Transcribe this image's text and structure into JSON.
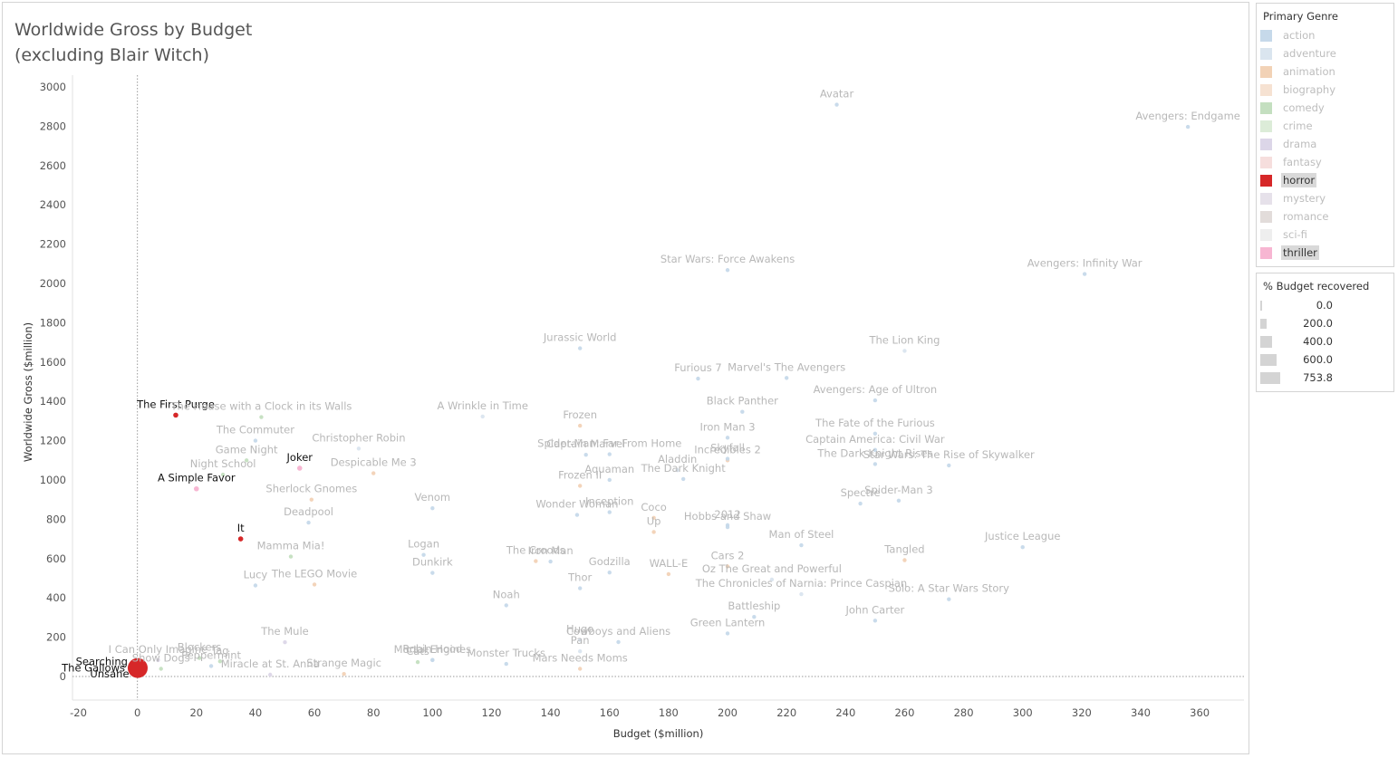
{
  "title": "Worldwide Gross by Budget\n(excluding Blair Witch)",
  "colors": {
    "action": "#c6d9ea",
    "adventure": "#dae5ef",
    "animation": "#f2d2b6",
    "biography": "#f6e2d2",
    "comedy": "#c4dfc0",
    "crime": "#dcecd8",
    "drama": "#dcd6e8",
    "fantasy": "#f6dedd",
    "horror": "#d62728",
    "mystery": "#e6e1ea",
    "romance": "#e2dcda",
    "sci-fi": "#eeeeee",
    "thriller": "#f7b6d2",
    "labelDim": "#b8b8b8",
    "labelDark": "#111111",
    "axis": "#555555"
  },
  "legend": {
    "title": "Primary Genre",
    "items": [
      {
        "label": "action",
        "key": "action",
        "highlighted": false
      },
      {
        "label": "adventure",
        "key": "adventure",
        "highlighted": false
      },
      {
        "label": "animation",
        "key": "animation",
        "highlighted": false
      },
      {
        "label": "biography",
        "key": "biography",
        "highlighted": false
      },
      {
        "label": "comedy",
        "key": "comedy",
        "highlighted": false
      },
      {
        "label": "crime",
        "key": "crime",
        "highlighted": false
      },
      {
        "label": "drama",
        "key": "drama",
        "highlighted": false
      },
      {
        "label": "fantasy",
        "key": "fantasy",
        "highlighted": false
      },
      {
        "label": "horror",
        "key": "horror",
        "highlighted": true
      },
      {
        "label": "mystery",
        "key": "mystery",
        "highlighted": false
      },
      {
        "label": "romance",
        "key": "romance",
        "highlighted": false
      },
      {
        "label": "sci-fi",
        "key": "sci-fi",
        "highlighted": false
      },
      {
        "label": "thriller",
        "key": "thriller",
        "highlighted": true
      }
    ]
  },
  "size_legend": {
    "title": "% Budget recovered",
    "items": [
      {
        "label": "0.0",
        "value": 0
      },
      {
        "label": "200.0",
        "value": 200
      },
      {
        "label": "400.0",
        "value": 400
      },
      {
        "label": "600.0",
        "value": 600
      },
      {
        "label": "753.8",
        "value": 753.8
      }
    ]
  },
  "chart_data": {
    "type": "scatter",
    "title": "Worldwide Gross by Budget\n(excluding Blair Witch)",
    "xlabel": "Budget ($million)",
    "ylabel": "Worldwide Gross ($million)",
    "xlim": [
      -22,
      375
    ],
    "ylim": [
      -120,
      3060
    ],
    "xticks": [
      -20,
      0,
      20,
      40,
      60,
      80,
      100,
      120,
      140,
      160,
      180,
      200,
      220,
      240,
      260,
      280,
      300,
      320,
      340,
      360
    ],
    "yticks": [
      0,
      200,
      400,
      600,
      800,
      1000,
      1200,
      1400,
      1600,
      1800,
      2000,
      2200,
      2400,
      2600,
      2800,
      3000
    ],
    "grid": false,
    "reference_lines": {
      "x": 0,
      "y": 0
    },
    "legend_position": "right",
    "labeled_points": [
      {
        "name": "Avatar",
        "x": 237,
        "y": 2910,
        "genre": "action"
      },
      {
        "name": "Avengers: Endgame",
        "x": 356,
        "y": 2797,
        "genre": "action"
      },
      {
        "name": "Star Wars: Force Awakens",
        "x": 200,
        "y": 2068,
        "genre": "action"
      },
      {
        "name": "Avengers: Infinity War",
        "x": 321,
        "y": 2048,
        "genre": "action"
      },
      {
        "name": "Jurassic World",
        "x": 150,
        "y": 1670,
        "genre": "action"
      },
      {
        "name": "The Lion King",
        "x": 260,
        "y": 1657,
        "genre": "adventure"
      },
      {
        "name": "Furious 7",
        "x": 190,
        "y": 1516,
        "genre": "action"
      },
      {
        "name": "Marvel's The Avengers",
        "x": 220,
        "y": 1519,
        "genre": "action"
      },
      {
        "name": "Avengers: Age of Ultron",
        "x": 250,
        "y": 1405,
        "genre": "action"
      },
      {
        "name": "Black Panther",
        "x": 205,
        "y": 1347,
        "genre": "action"
      },
      {
        "name": "The First Purge",
        "x": 13,
        "y": 1330,
        "genre": "horror"
      },
      {
        "name": "The House with a Clock in its Walls",
        "x": 42,
        "y": 1320,
        "genre": "comedy"
      },
      {
        "name": "A Wrinkle in Time",
        "x": 117,
        "y": 1323,
        "genre": "adventure"
      },
      {
        "name": "Frozen",
        "x": 150,
        "y": 1276,
        "genre": "animation"
      },
      {
        "name": "The Fate of the Furious",
        "x": 250,
        "y": 1236,
        "genre": "action"
      },
      {
        "name": "Iron Man 3",
        "x": 200,
        "y": 1215,
        "genre": "action"
      },
      {
        "name": "The Commuter",
        "x": 40,
        "y": 1200,
        "genre": "action"
      },
      {
        "name": "Christopher Robin",
        "x": 75,
        "y": 1160,
        "genre": "adventure"
      },
      {
        "name": "Spider-Man: Far From Home",
        "x": 160,
        "y": 1131,
        "genre": "action"
      },
      {
        "name": "Incredibles 2",
        "x": 200,
        "y": 1100,
        "genre": "animation"
      },
      {
        "name": "Captain America: Civil War",
        "x": 250,
        "y": 1153,
        "genre": "action"
      },
      {
        "name": "Skyfall",
        "x": 200,
        "y": 1108,
        "genre": "action"
      },
      {
        "name": "Game Night",
        "x": 37,
        "y": 1100,
        "genre": "comedy"
      },
      {
        "name": "Joker",
        "x": 55,
        "y": 1060,
        "genre": "thriller"
      },
      {
        "name": "Despicable Me 3",
        "x": 80,
        "y": 1034,
        "genre": "animation"
      },
      {
        "name": "Captain Marvel",
        "x": 152,
        "y": 1128,
        "genre": "action"
      },
      {
        "name": "Aladdin",
        "x": 183,
        "y": 1050,
        "genre": "adventure"
      },
      {
        "name": "The Dark Knight Rises",
        "x": 250,
        "y": 1081,
        "genre": "action"
      },
      {
        "name": "Night School",
        "x": 29,
        "y": 1027,
        "genre": "comedy"
      },
      {
        "name": "A Simple Favor",
        "x": 20,
        "y": 955,
        "genre": "thriller"
      },
      {
        "name": "Aquaman",
        "x": 160,
        "y": 1000,
        "genre": "action"
      },
      {
        "name": "The Dark Knight",
        "x": 185,
        "y": 1005,
        "genre": "action"
      },
      {
        "name": "Sherlock Gnomes",
        "x": 59,
        "y": 900,
        "genre": "animation"
      },
      {
        "name": "Spider-Man 3",
        "x": 258,
        "y": 895,
        "genre": "action"
      },
      {
        "name": "Frozen II",
        "x": 150,
        "y": 970,
        "genre": "animation"
      },
      {
        "name": "Venom",
        "x": 100,
        "y": 856,
        "genre": "action"
      },
      {
        "name": "Inception",
        "x": 160,
        "y": 836,
        "genre": "action"
      },
      {
        "name": "Blockers",
        "x": 21,
        "y": 94,
        "genre": "comedy"
      },
      {
        "name": "I Can Only Imagine",
        "x": 7,
        "y": 83,
        "genre": "drama"
      },
      {
        "name": "The Mule",
        "x": 50,
        "y": 174,
        "genre": "drama"
      },
      {
        "name": "Spectre",
        "x": 245,
        "y": 880,
        "genre": "action"
      },
      {
        "name": "Star Wars: The Rise of Skywalker",
        "x": 275,
        "y": 1074,
        "genre": "action"
      },
      {
        "name": "Wonder Woman",
        "x": 149,
        "y": 822,
        "genre": "action"
      },
      {
        "name": "Robin Hood",
        "x": 100,
        "y": 84,
        "genre": "action"
      },
      {
        "name": "Deadpool",
        "x": 58,
        "y": 783,
        "genre": "action"
      },
      {
        "name": "2012",
        "x": 200,
        "y": 770,
        "genre": "action"
      },
      {
        "name": "Hobbs and Shaw",
        "x": 200,
        "y": 760,
        "genre": "action"
      },
      {
        "name": "Searching",
        "x": 1,
        "y": 75,
        "genre": "thriller"
      },
      {
        "name": "Tag",
        "x": 28,
        "y": 77,
        "genre": "comedy"
      },
      {
        "name": "It",
        "x": 35,
        "y": 700,
        "genre": "horror"
      },
      {
        "name": "Mortal Engines",
        "x": 100,
        "y": 83,
        "genre": "action"
      },
      {
        "name": "Up",
        "x": 175,
        "y": 735,
        "genre": "animation"
      },
      {
        "name": "Justice League",
        "x": 300,
        "y": 658,
        "genre": "action"
      },
      {
        "name": "Man of Steel",
        "x": 225,
        "y": 668,
        "genre": "action"
      },
      {
        "name": "Tangled",
        "x": 260,
        "y": 592,
        "genre": "animation"
      },
      {
        "name": "Iron Man",
        "x": 140,
        "y": 585,
        "genre": "action"
      },
      {
        "name": "Logan",
        "x": 97,
        "y": 619,
        "genre": "action"
      },
      {
        "name": "Mamma Mia!",
        "x": 52,
        "y": 610,
        "genre": "comedy"
      },
      {
        "name": "Dunkirk",
        "x": 100,
        "y": 527,
        "genre": "action"
      },
      {
        "name": "The Croods",
        "x": 135,
        "y": 587,
        "genre": "animation"
      },
      {
        "name": "Godzilla",
        "x": 160,
        "y": 529,
        "genre": "action"
      },
      {
        "name": "Peppermint",
        "x": 25,
        "y": 53,
        "genre": "action"
      },
      {
        "name": "Oz The Great and Powerful",
        "x": 215,
        "y": 493,
        "genre": "adventure"
      },
      {
        "name": "WALL-E",
        "x": 180,
        "y": 521,
        "genre": "animation"
      },
      {
        "name": "Lucy",
        "x": 40,
        "y": 463,
        "genre": "action"
      },
      {
        "name": "The LEGO Movie",
        "x": 60,
        "y": 468,
        "genre": "animation"
      },
      {
        "name": "The Chronicles of Narnia: Prince Caspian",
        "x": 225,
        "y": 419,
        "genre": "adventure"
      },
      {
        "name": "Solo: A Star Wars Story",
        "x": 275,
        "y": 393,
        "genre": "action"
      },
      {
        "name": "Noah",
        "x": 125,
        "y": 362,
        "genre": "action"
      },
      {
        "name": "Coco",
        "x": 175,
        "y": 807,
        "genre": "animation"
      },
      {
        "name": "Show Dogs",
        "x": 8,
        "y": 39,
        "genre": "comedy"
      },
      {
        "name": "Battleship",
        "x": 209,
        "y": 303,
        "genre": "action"
      },
      {
        "name": "Cars 2",
        "x": 200,
        "y": 560,
        "genre": "animation"
      },
      {
        "name": "John Carter",
        "x": 250,
        "y": 284,
        "genre": "action"
      },
      {
        "name": "Thor",
        "x": 150,
        "y": 449,
        "genre": "action"
      },
      {
        "name": "Unsane",
        "x": 1.5,
        "y": 14,
        "genre": "horror"
      },
      {
        "name": "Green Lantern",
        "x": 200,
        "y": 219,
        "genre": "action"
      },
      {
        "name": "Pan",
        "x": 150,
        "y": 128,
        "genre": "adventure"
      },
      {
        "name": "Hugo",
        "x": 150,
        "y": 186,
        "genre": "adventure"
      },
      {
        "name": "Cowboys and Aliens",
        "x": 163,
        "y": 175,
        "genre": "action"
      },
      {
        "name": "Cats",
        "x": 95,
        "y": 73,
        "genre": "comedy"
      },
      {
        "name": "Miracle at St. Anna",
        "x": 45,
        "y": 9,
        "genre": "drama"
      },
      {
        "name": "Monster Trucks",
        "x": 125,
        "y": 64,
        "genre": "action"
      },
      {
        "name": "Strange Magic",
        "x": 70,
        "y": 13,
        "genre": "animation"
      },
      {
        "name": "Mars Needs Moms",
        "x": 150,
        "y": 39,
        "genre": "animation"
      },
      {
        "name": "The Gallows",
        "x": 0.1,
        "y": 43,
        "genre": "horror"
      }
    ]
  }
}
